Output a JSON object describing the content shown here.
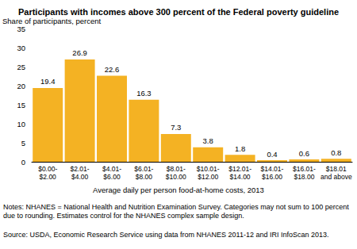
{
  "chart_data": {
    "type": "bar",
    "title": "Participants with incomes above 300 percent of the Federal poverty guideline",
    "y_label": "Share of participants, percent",
    "x_label": "Average daily per person food-at-home costs, 2013",
    "categories": [
      "$0.00-$2.00",
      "$2.01-$4.00",
      "$4.01-$6.00",
      "$6.01-$8.00",
      "$8.01-$10.00",
      "$10.01-$12.00",
      "$12.01-$14.00",
      "$14.01-$16.00",
      "$16.01-$18.00",
      "$18.01 and above"
    ],
    "values": [
      19.4,
      26.9,
      22.6,
      16.3,
      7.3,
      3.8,
      1.8,
      0.4,
      0.6,
      0.8
    ],
    "color": "#f4b223",
    "ylim": [
      0,
      35
    ],
    "yticks": [
      0,
      5,
      10,
      15,
      20,
      25,
      30,
      35
    ],
    "grid": false,
    "data_labels": true,
    "annotations": [
      "Notes: NHANES = National Health and Nutrition Examination Survey. Categories may not sum to 100 percent due to rounding. Estimates control for the NHANES complex sample design.",
      "Source: USDA, Economic Research Service using data from NHANES 2011-12 and IRI InfoScan 2013."
    ]
  }
}
